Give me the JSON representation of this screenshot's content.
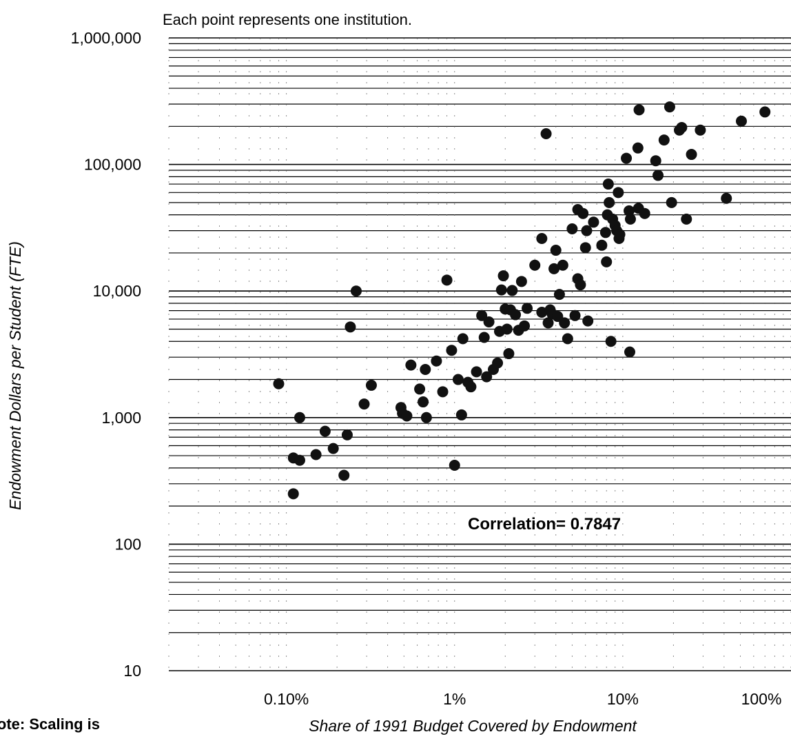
{
  "chart_data": {
    "type": "scatter",
    "subtitle": "Each point represents one institution.",
    "xlabel": "Share of 1991 Budget Covered by Endowment",
    "ylabel": "Endowment Dollars per Student (FTE)",
    "x_scale": "log",
    "y_scale": "log",
    "xlim": [
      0.0002,
      1.0
    ],
    "ylim": [
      10,
      1000000
    ],
    "x_tick_labels": [
      "0.10%",
      "1%",
      "10%",
      "100%"
    ],
    "y_tick_labels": [
      "1,000,000",
      "100,000",
      "10,000",
      "1,000",
      "100",
      "10"
    ],
    "annotation": "Correlation= 0.7847",
    "note": "Note: Scaling is",
    "grid": true,
    "legend": "none",
    "point_color": "#111111",
    "points": [
      [
        0.0009,
        1850
      ],
      [
        0.0011,
        480
      ],
      [
        0.0011,
        250
      ],
      [
        0.0012,
        460
      ],
      [
        0.0012,
        1000
      ],
      [
        0.0015,
        510
      ],
      [
        0.0017,
        780
      ],
      [
        0.0019,
        570
      ],
      [
        0.0022,
        350
      ],
      [
        0.0023,
        730
      ],
      [
        0.0024,
        5200
      ],
      [
        0.0026,
        10000
      ],
      [
        0.0029,
        1280
      ],
      [
        0.0032,
        1800
      ],
      [
        0.0048,
        1200
      ],
      [
        0.0049,
        1080
      ],
      [
        0.0052,
        1030
      ],
      [
        0.0055,
        2600
      ],
      [
        0.0062,
        1680
      ],
      [
        0.0065,
        1330
      ],
      [
        0.0067,
        2400
      ],
      [
        0.0068,
        1000
      ],
      [
        0.0078,
        2800
      ],
      [
        0.0085,
        1600
      ],
      [
        0.009,
        12200
      ],
      [
        0.0096,
        3400
      ],
      [
        0.01,
        420
      ],
      [
        0.0105,
        2000
      ],
      [
        0.011,
        1050
      ],
      [
        0.0112,
        4200
      ],
      [
        0.012,
        1900
      ],
      [
        0.0125,
        1750
      ],
      [
        0.0135,
        2300
      ],
      [
        0.0145,
        6400
      ],
      [
        0.015,
        4300
      ],
      [
        0.0155,
        2100
      ],
      [
        0.016,
        5700
      ],
      [
        0.017,
        2400
      ],
      [
        0.018,
        2700
      ],
      [
        0.0185,
        4800
      ],
      [
        0.019,
        10200
      ],
      [
        0.0195,
        13200
      ],
      [
        0.02,
        7200
      ],
      [
        0.0205,
        5000
      ],
      [
        0.021,
        3200
      ],
      [
        0.0215,
        7100
      ],
      [
        0.022,
        10100
      ],
      [
        0.023,
        6500
      ],
      [
        0.024,
        4900
      ],
      [
        0.025,
        11900
      ],
      [
        0.026,
        5300
      ],
      [
        0.027,
        7300
      ],
      [
        0.03,
        16000
      ],
      [
        0.033,
        26000
      ],
      [
        0.033,
        6800
      ],
      [
        0.035,
        175000
      ],
      [
        0.036,
        5600
      ],
      [
        0.037,
        7100
      ],
      [
        0.038,
        6600
      ],
      [
        0.039,
        15000
      ],
      [
        0.04,
        21000
      ],
      [
        0.041,
        6300
      ],
      [
        0.042,
        9400
      ],
      [
        0.044,
        16000
      ],
      [
        0.045,
        5600
      ],
      [
        0.047,
        4200
      ],
      [
        0.05,
        31000
      ],
      [
        0.052,
        6400
      ],
      [
        0.054,
        44000
      ],
      [
        0.054,
        12500
      ],
      [
        0.056,
        11200
      ],
      [
        0.058,
        41000
      ],
      [
        0.06,
        22000
      ],
      [
        0.061,
        30000
      ],
      [
        0.062,
        5800
      ],
      [
        0.067,
        35000
      ],
      [
        0.075,
        23000
      ],
      [
        0.079,
        29000
      ],
      [
        0.08,
        17000
      ],
      [
        0.081,
        40000
      ],
      [
        0.082,
        70000
      ],
      [
        0.083,
        50000
      ],
      [
        0.085,
        4000
      ],
      [
        0.087,
        37000
      ],
      [
        0.09,
        33000
      ],
      [
        0.092,
        30000
      ],
      [
        0.094,
        60000
      ],
      [
        0.095,
        26000
      ],
      [
        0.096,
        28000
      ],
      [
        0.105,
        112000
      ],
      [
        0.109,
        43000
      ],
      [
        0.11,
        3300
      ],
      [
        0.111,
        37000
      ],
      [
        0.123,
        135000
      ],
      [
        0.124,
        45000
      ],
      [
        0.125,
        270000
      ],
      [
        0.135,
        41000
      ],
      [
        0.157,
        107000
      ],
      [
        0.162,
        82000
      ],
      [
        0.176,
        156000
      ],
      [
        0.19,
        285000
      ],
      [
        0.195,
        50000
      ],
      [
        0.217,
        187000
      ],
      [
        0.224,
        196000
      ],
      [
        0.239,
        37000
      ],
      [
        0.256,
        120000
      ],
      [
        0.289,
        187000
      ],
      [
        0.413,
        54000
      ],
      [
        0.507,
        220000
      ],
      [
        0.7,
        260000
      ]
    ]
  }
}
